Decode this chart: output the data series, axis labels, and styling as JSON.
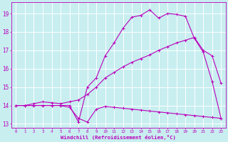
{
  "background_color": "#c8eef0",
  "grid_color": "#ffffff",
  "line_color": "#bb00bb",
  "xlabel": "Windchill (Refroidissement éolien,°C)",
  "xlim": [
    -0.5,
    23.5
  ],
  "ylim": [
    12.8,
    19.6
  ],
  "yticks": [
    13,
    14,
    15,
    16,
    17,
    18,
    19
  ],
  "xticks": [
    0,
    1,
    2,
    3,
    4,
    5,
    6,
    7,
    8,
    9,
    10,
    11,
    12,
    13,
    14,
    15,
    16,
    17,
    18,
    19,
    20,
    21,
    22,
    23
  ],
  "curve1_x": [
    0,
    1,
    2,
    3,
    4,
    5,
    6,
    7,
    8,
    9,
    10,
    11,
    12,
    13,
    14,
    15,
    16,
    17,
    18,
    19,
    20,
    21,
    22,
    23
  ],
  "curve1_y": [
    14.0,
    14.0,
    14.0,
    14.0,
    14.0,
    14.0,
    13.9,
    13.3,
    13.1,
    13.8,
    13.95,
    13.9,
    13.85,
    13.8,
    13.75,
    13.7,
    13.65,
    13.6,
    13.55,
    13.5,
    13.45,
    13.4,
    13.35,
    13.3
  ],
  "curve2_x": [
    0,
    1,
    2,
    3,
    4,
    5,
    6,
    7,
    8,
    9,
    10,
    11,
    12,
    13,
    14,
    15,
    16,
    17,
    18,
    19,
    20,
    21,
    22,
    23
  ],
  "curve2_y": [
    14.0,
    14.0,
    14.1,
    14.2,
    14.15,
    14.1,
    14.2,
    14.3,
    14.6,
    15.0,
    15.5,
    15.8,
    16.1,
    16.35,
    16.55,
    16.75,
    17.0,
    17.2,
    17.4,
    17.55,
    17.7,
    17.0,
    16.7,
    15.2
  ],
  "curve3_x": [
    0,
    1,
    2,
    3,
    4,
    5,
    6,
    7,
    8,
    9,
    10,
    11,
    12,
    13,
    14,
    15,
    16,
    17,
    18,
    19,
    20,
    21,
    22,
    23
  ],
  "curve3_y": [
    14.0,
    14.0,
    14.0,
    14.0,
    14.0,
    14.0,
    14.0,
    13.1,
    15.0,
    15.5,
    16.7,
    17.4,
    18.2,
    18.8,
    18.9,
    19.2,
    18.75,
    19.0,
    18.95,
    18.85,
    17.65,
    16.9,
    15.3,
    13.3
  ]
}
